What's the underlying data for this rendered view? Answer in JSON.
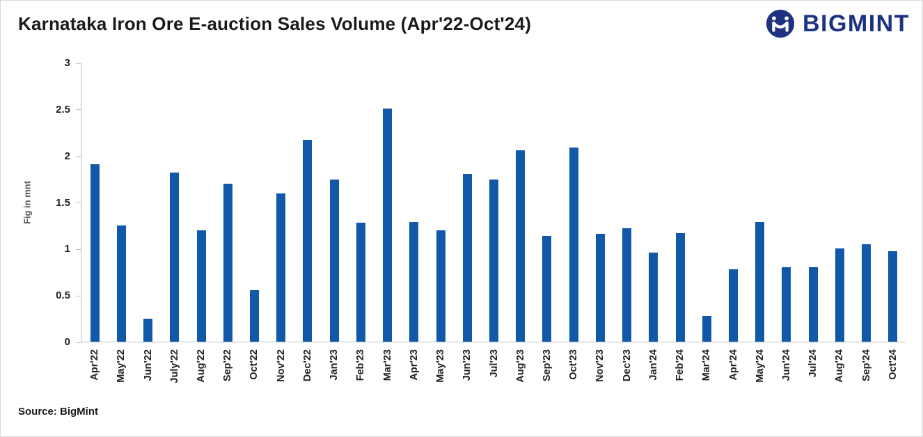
{
  "header": {
    "title": "Karnataka Iron Ore E-auction Sales Volume (Apr'22-Oct'24)",
    "logo_text": "BIGMINT"
  },
  "footer": {
    "source": "Source: BigMint"
  },
  "colors": {
    "bar": "#1158A9",
    "logo_navy": "#1E3282",
    "axis_line": "#BFBFBF",
    "title_text": "#1A1A1A",
    "axis_text": "#222222",
    "ylabel_text": "#595959"
  },
  "chart_data": {
    "type": "bar",
    "title": "Karnataka Iron Ore E-auction Sales Volume (Apr'22-Oct'24)",
    "xlabel": "",
    "ylabel": "Fig in mnt",
    "ylim": [
      0,
      3
    ],
    "yticks": [
      0,
      0.5,
      1,
      1.5,
      2,
      2.5,
      3
    ],
    "grid": false,
    "legend": "none",
    "categories": [
      "Apr'22",
      "May'22",
      "Jun'22",
      "July'22",
      "Aug'22",
      "Sep'22",
      "Oct'22",
      "Nov'22",
      "Dec'22",
      "Jan'23",
      "Feb'23",
      "Mar'23",
      "Apr'23",
      "May'23",
      "Jun'23",
      "Jul'23",
      "Aug'23",
      "Sep'23",
      "Oct'23",
      "Nov'23",
      "Dec'23",
      "Jan'24",
      "Feb'24",
      "Mar'24",
      "Apr'24",
      "May'24",
      "Jun'24",
      "Jul'24",
      "Aug'24",
      "Sep'24",
      "Oct'24"
    ],
    "values": [
      1.91,
      1.25,
      0.25,
      1.82,
      1.2,
      1.7,
      0.55,
      1.59,
      2.17,
      1.74,
      1.28,
      2.51,
      1.29,
      1.2,
      1.8,
      1.74,
      2.06,
      1.14,
      2.09,
      1.16,
      1.22,
      0.96,
      1.17,
      0.28,
      0.78,
      1.29,
      0.8,
      0.8,
      1.0,
      1.05,
      0.97
    ]
  }
}
